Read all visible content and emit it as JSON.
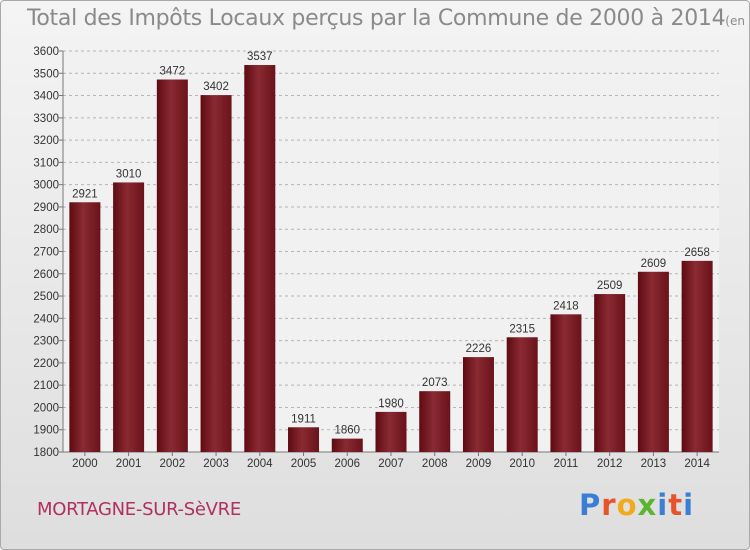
{
  "chart_data": {
    "type": "bar",
    "title": "Total des Impôts Locaux perçus par la Commune de 2000 à 2014",
    "unit": "(en milliers d'€)",
    "xlabel": "",
    "ylabel": "",
    "categories": [
      "2000",
      "2001",
      "2002",
      "2003",
      "2004",
      "2005",
      "2006",
      "2007",
      "2008",
      "2009",
      "2010",
      "2011",
      "2012",
      "2013",
      "2014"
    ],
    "values": [
      2921,
      3010,
      3472,
      3402,
      3537,
      1911,
      1860,
      1980,
      2073,
      2226,
      2315,
      2418,
      2509,
      2609,
      2658
    ],
    "ylim": [
      1800,
      3600
    ],
    "yticks": [
      1800,
      1900,
      2000,
      2100,
      2200,
      2300,
      2400,
      2500,
      2600,
      2700,
      2800,
      2900,
      3000,
      3100,
      3200,
      3300,
      3400,
      3500,
      3600
    ],
    "grid": "horizontal-dashed",
    "bar_color": "#7a1a22"
  },
  "footer": {
    "commune": "MORTAGNE-SUR-SèVRE",
    "logo_letters": [
      "P",
      "r",
      "o",
      "x",
      "i",
      "t",
      "i"
    ],
    "logo_colors": [
      "#3a7fd5",
      "#e8542a",
      "#f3a91c",
      "#5bb531",
      "#3a7fd5",
      "#e8542a",
      "#3a7fd5"
    ]
  }
}
